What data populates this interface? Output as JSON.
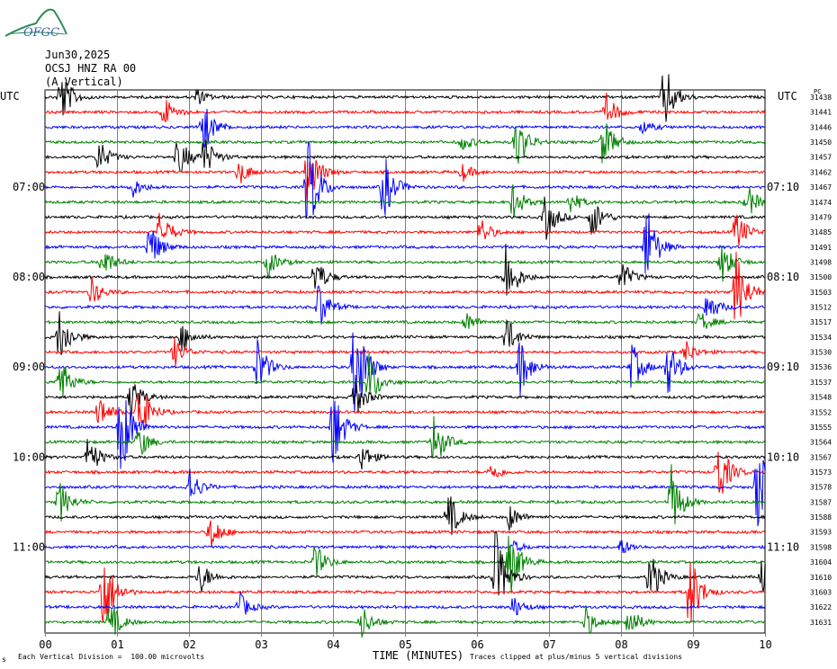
{
  "header": {
    "logo_text": "OFGC",
    "date": "Jun30,2025",
    "station": "OCSJ HNZ RA 00",
    "component": "(A Vertical)"
  },
  "left_axis_label": "UTC",
  "right_axis_label": "UTC",
  "right_column_header": "PC",
  "footer": {
    "scale": "Each Vertical Division =  100.00 microvolts",
    "clip_note": "Traces clipped at plus/minus 5 vertical divisions",
    "corner_mark": "s"
  },
  "colors": {
    "trace_cycle": [
      "#000000",
      "#ff0000",
      "#0000ff",
      "#008000"
    ],
    "grid": "#808080"
  },
  "chart_data": {
    "type": "line",
    "title": "",
    "xlabel": "TIME (MINUTES)",
    "x_range": [
      0,
      10
    ],
    "x_ticks": [
      "00",
      "01",
      "02",
      "03",
      "04",
      "05",
      "06",
      "07",
      "08",
      "09",
      "10"
    ],
    "left_time_labels": [
      {
        "row": 6,
        "label": "07:00"
      },
      {
        "row": 12,
        "label": "08:00"
      },
      {
        "row": 18,
        "label": "09:00"
      },
      {
        "row": 24,
        "label": "10:00"
      },
      {
        "row": 30,
        "label": "11:00"
      }
    ],
    "right_time_labels": [
      {
        "row": 6,
        "label": "07:10"
      },
      {
        "row": 12,
        "label": "08:10"
      },
      {
        "row": 18,
        "label": "09:10"
      },
      {
        "row": 24,
        "label": "10:10"
      },
      {
        "row": 30,
        "label": "11:10"
      }
    ],
    "row_values": [
      31438,
      31441,
      31446,
      31450,
      31457,
      31462,
      31467,
      31474,
      31479,
      31485,
      31491,
      31498,
      31500,
      31503,
      31512,
      31517,
      31534,
      31530,
      31536,
      31537,
      31548,
      31552,
      31555,
      31564,
      31567,
      31573,
      31578,
      31587,
      31588,
      31593,
      31598,
      31604,
      31610,
      31603,
      31622,
      31631
    ],
    "events": [
      {
        "row": 0,
        "x": 0.22,
        "amp": 2.0
      },
      {
        "row": 0,
        "x": 2.1,
        "amp": 0.6
      },
      {
        "row": 0,
        "x": 8.6,
        "amp": 2.5
      },
      {
        "row": 1,
        "x": 1.65,
        "amp": 1.1
      },
      {
        "row": 1,
        "x": 7.8,
        "amp": 1.2
      },
      {
        "row": 2,
        "x": 2.2,
        "amp": 1.8
      },
      {
        "row": 2,
        "x": 8.3,
        "amp": 0.5
      },
      {
        "row": 3,
        "x": 5.8,
        "amp": 0.6
      },
      {
        "row": 3,
        "x": 6.55,
        "amp": 2.0
      },
      {
        "row": 3,
        "x": 7.75,
        "amp": 1.8
      },
      {
        "row": 4,
        "x": 0.75,
        "amp": 1.2
      },
      {
        "row": 4,
        "x": 1.85,
        "amp": 1.5
      },
      {
        "row": 4,
        "x": 2.2,
        "amp": 1.6
      },
      {
        "row": 5,
        "x": 2.7,
        "amp": 0.9
      },
      {
        "row": 5,
        "x": 3.65,
        "amp": 2.5
      },
      {
        "row": 5,
        "x": 5.8,
        "amp": 0.6
      },
      {
        "row": 6,
        "x": 1.2,
        "amp": 0.8
      },
      {
        "row": 6,
        "x": 3.65,
        "amp": 4.0
      },
      {
        "row": 6,
        "x": 4.7,
        "amp": 2.5
      },
      {
        "row": 7,
        "x": 6.5,
        "amp": 1.3
      },
      {
        "row": 7,
        "x": 7.3,
        "amp": 0.8
      },
      {
        "row": 7,
        "x": 9.75,
        "amp": 1.2
      },
      {
        "row": 8,
        "x": 6.95,
        "amp": 1.7
      },
      {
        "row": 8,
        "x": 7.6,
        "amp": 1.5
      },
      {
        "row": 9,
        "x": 1.6,
        "amp": 1.6
      },
      {
        "row": 9,
        "x": 6.05,
        "amp": 1.0
      },
      {
        "row": 9,
        "x": 9.6,
        "amp": 1.5
      },
      {
        "row": 10,
        "x": 1.45,
        "amp": 1.8
      },
      {
        "row": 10,
        "x": 8.35,
        "amp": 3.2
      },
      {
        "row": 11,
        "x": 0.8,
        "amp": 1.2
      },
      {
        "row": 11,
        "x": 3.1,
        "amp": 1.0
      },
      {
        "row": 11,
        "x": 9.4,
        "amp": 1.5
      },
      {
        "row": 12,
        "x": 3.75,
        "amp": 1.5
      },
      {
        "row": 12,
        "x": 6.4,
        "amp": 2.5
      },
      {
        "row": 12,
        "x": 8.0,
        "amp": 1.2
      },
      {
        "row": 13,
        "x": 0.65,
        "amp": 1.0
      },
      {
        "row": 13,
        "x": 9.6,
        "amp": 3.0
      },
      {
        "row": 14,
        "x": 3.8,
        "amp": 1.8
      },
      {
        "row": 14,
        "x": 9.2,
        "amp": 1.2
      },
      {
        "row": 15,
        "x": 5.85,
        "amp": 0.7
      },
      {
        "row": 15,
        "x": 9.1,
        "amp": 0.8
      },
      {
        "row": 16,
        "x": 0.2,
        "amp": 2.0
      },
      {
        "row": 16,
        "x": 6.4,
        "amp": 1.5
      },
      {
        "row": 16,
        "x": 1.9,
        "amp": 1.0
      },
      {
        "row": 17,
        "x": 1.8,
        "amp": 1.0
      },
      {
        "row": 17,
        "x": 8.9,
        "amp": 0.8
      },
      {
        "row": 18,
        "x": 2.95,
        "amp": 2.0
      },
      {
        "row": 18,
        "x": 4.3,
        "amp": 5.0
      },
      {
        "row": 18,
        "x": 6.6,
        "amp": 2.0
      },
      {
        "row": 18,
        "x": 8.15,
        "amp": 1.7
      },
      {
        "row": 18,
        "x": 8.65,
        "amp": 2.0
      },
      {
        "row": 19,
        "x": 0.2,
        "amp": 2.0
      },
      {
        "row": 19,
        "x": 4.5,
        "amp": 2.0
      },
      {
        "row": 20,
        "x": 4.3,
        "amp": 1.5
      },
      {
        "row": 20,
        "x": 1.2,
        "amp": 1.5
      },
      {
        "row": 21,
        "x": 0.75,
        "amp": 1.2
      },
      {
        "row": 21,
        "x": 1.3,
        "amp": 2.5
      },
      {
        "row": 22,
        "x": 1.05,
        "amp": 4.0
      },
      {
        "row": 22,
        "x": 4.0,
        "amp": 3.0
      },
      {
        "row": 23,
        "x": 1.3,
        "amp": 1.2
      },
      {
        "row": 23,
        "x": 5.4,
        "amp": 2.0
      },
      {
        "row": 24,
        "x": 0.6,
        "amp": 1.5
      },
      {
        "row": 24,
        "x": 4.4,
        "amp": 1.0
      },
      {
        "row": 25,
        "x": 6.2,
        "amp": 0.7
      },
      {
        "row": 25,
        "x": 9.35,
        "amp": 2.5
      },
      {
        "row": 26,
        "x": 2.0,
        "amp": 1.5
      },
      {
        "row": 26,
        "x": 9.9,
        "amp": 3.5
      },
      {
        "row": 27,
        "x": 0.2,
        "amp": 1.5
      },
      {
        "row": 27,
        "x": 8.7,
        "amp": 2.5
      },
      {
        "row": 28,
        "x": 5.6,
        "amp": 1.8
      },
      {
        "row": 28,
        "x": 6.45,
        "amp": 0.9
      },
      {
        "row": 29,
        "x": 2.3,
        "amp": 1.3
      },
      {
        "row": 30,
        "x": 8.0,
        "amp": 0.6
      },
      {
        "row": 30,
        "x": 6.5,
        "amp": 0.4
      },
      {
        "row": 31,
        "x": 3.75,
        "amp": 1.3
      },
      {
        "row": 31,
        "x": 6.45,
        "amp": 2.5
      },
      {
        "row": 32,
        "x": 2.15,
        "amp": 1.2
      },
      {
        "row": 32,
        "x": 6.25,
        "amp": 3.5
      },
      {
        "row": 32,
        "x": 8.4,
        "amp": 2.0
      },
      {
        "row": 32,
        "x": 9.95,
        "amp": 1.2
      },
      {
        "row": 33,
        "x": 0.8,
        "amp": 3.5
      },
      {
        "row": 33,
        "x": 8.95,
        "amp": 3.0
      },
      {
        "row": 34,
        "x": 2.7,
        "amp": 1.0
      },
      {
        "row": 34,
        "x": 6.5,
        "amp": 0.8
      },
      {
        "row": 35,
        "x": 0.9,
        "amp": 1.5
      },
      {
        "row": 35,
        "x": 4.4,
        "amp": 1.2
      },
      {
        "row": 35,
        "x": 7.5,
        "amp": 1.2
      },
      {
        "row": 35,
        "x": 8.1,
        "amp": 1.3
      }
    ]
  }
}
